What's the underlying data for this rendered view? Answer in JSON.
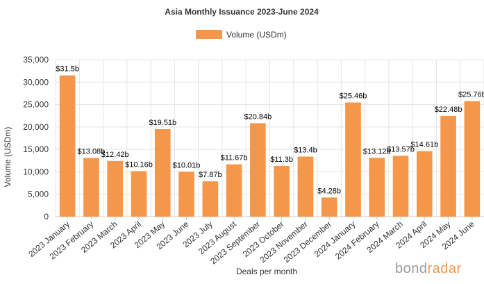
{
  "chart_data": {
    "type": "bar",
    "title": "Asia Monthly Issuance 2023-June 2024",
    "xlabel": "Deals per month",
    "ylabel": "Volume (USDm)",
    "ylim": [
      0,
      35000
    ],
    "yticks": [
      0,
      5000,
      10000,
      15000,
      20000,
      25000,
      30000,
      35000
    ],
    "ytick_labels": [
      "0",
      "5,000",
      "10,000",
      "15,000",
      "20,000",
      "25,000",
      "30,000",
      "35,000"
    ],
    "grid": true,
    "legend_position": "top-center",
    "categories": [
      "2023 January",
      "2023 February",
      "2023 March",
      "2023 April",
      "2023 May",
      "2023 June",
      "2023 July",
      "2023 August",
      "2023 September",
      "2023 October",
      "2023 November",
      "2023 December",
      "2024 January",
      "2024 February",
      "2024 March",
      "2024 April",
      "2024 May",
      "2024 June"
    ],
    "series": [
      {
        "name": "Volume (USDm)",
        "color": "#f5974a",
        "values": [
          31500,
          13080,
          12420,
          10160,
          19510,
          10010,
          7870,
          11670,
          20840,
          11300,
          13400,
          4280,
          25460,
          13120,
          13570,
          14610,
          22480,
          25760
        ],
        "labels": [
          "$31.5b",
          "$13.08b",
          "$12.42b",
          "$10.16b",
          "$19.51b",
          "$10.01b",
          "$7.87b",
          "$11.67b",
          "$20.84b",
          "$11.3b",
          "$13.4b",
          "$4.28b",
          "$25.46b",
          "$13.12b",
          "$13.57b",
          "$14.61b",
          "$22.48b",
          "$25.76b"
        ]
      }
    ]
  },
  "watermark": {
    "part1": "bond",
    "part2": "radar",
    "color1": "#9a9a9a",
    "color2": "#f5974a"
  }
}
